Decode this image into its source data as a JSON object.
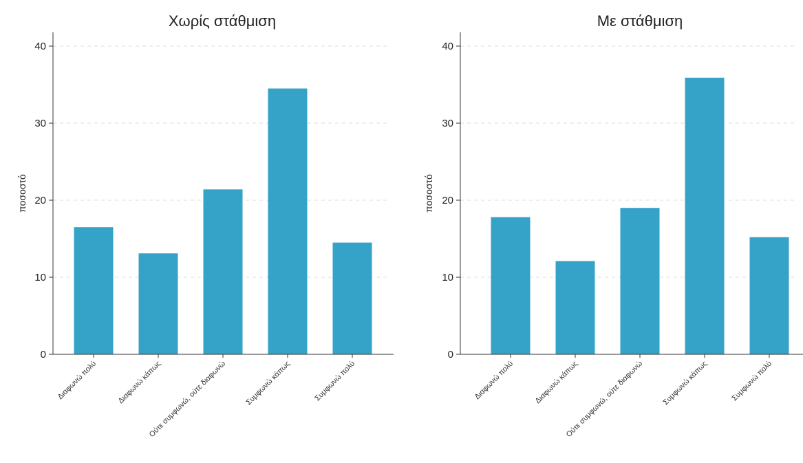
{
  "chart_data": [
    {
      "type": "bar",
      "title": "Χωρίς στάθμιση",
      "ylabel": "ποσοστό",
      "xlabel": "",
      "ylim": [
        0,
        40
      ],
      "yticks": [
        0,
        10,
        20,
        30,
        40
      ],
      "grid": true,
      "categories": [
        "Διαφωνώ πολύ",
        "Διαφωνώ κάπως",
        "Ούτε συμφωνώ, ούτε διαφωνώ",
        "Συμφωνώ κάπως",
        "Συμφωνώ πολύ"
      ],
      "values": [
        16.5,
        13.1,
        21.4,
        34.5,
        14.5
      ],
      "color": "#35a2c8"
    },
    {
      "type": "bar",
      "title": "Με στάθμιση",
      "ylabel": "ποσοστό",
      "xlabel": "",
      "ylim": [
        0,
        40
      ],
      "yticks": [
        0,
        10,
        20,
        30,
        40
      ],
      "grid": true,
      "categories": [
        "Διαφωνώ πολύ",
        "Διαφωνώ κάπως",
        "Ούτε συμφωνώ, ούτε διαφωνώ",
        "Συμφωνώ κάπως",
        "Συμφωνώ πολύ"
      ],
      "values": [
        17.8,
        12.1,
        19.0,
        35.9,
        15.2
      ],
      "color": "#35a2c8"
    }
  ]
}
